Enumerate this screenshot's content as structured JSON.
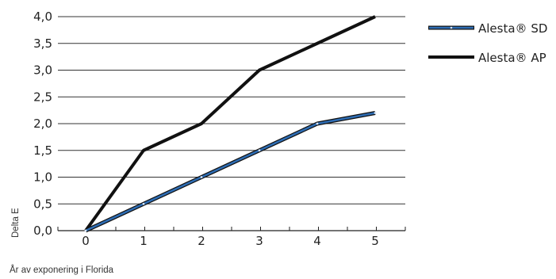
{
  "chart_data": {
    "type": "line",
    "x": [
      0,
      1,
      2,
      3,
      4,
      5
    ],
    "series": [
      {
        "name": "Alesta® SD",
        "values": [
          0,
          0.5,
          1.0,
          1.5,
          2.0,
          2.2
        ],
        "color": "#2e6db4",
        "style": "blue line with black outline"
      },
      {
        "name": "Alesta® AP",
        "values": [
          0,
          1.5,
          2.0,
          3.0,
          3.5,
          4.0
        ],
        "color": "#111111",
        "style": "thick black line"
      }
    ],
    "xlabel": "År av exponering i Florida",
    "ylabel": "Delta E",
    "xticks": [
      "0",
      "1",
      "2",
      "3",
      "4",
      "5"
    ],
    "yticks": [
      "0,0",
      "0,5",
      "1,0",
      "1,5",
      "2,0",
      "2,5",
      "3,0",
      "3,5",
      "4,0"
    ],
    "xlim": [
      0,
      5
    ],
    "ylim": [
      0,
      4
    ],
    "grid": "horizontal",
    "legend": "right"
  }
}
